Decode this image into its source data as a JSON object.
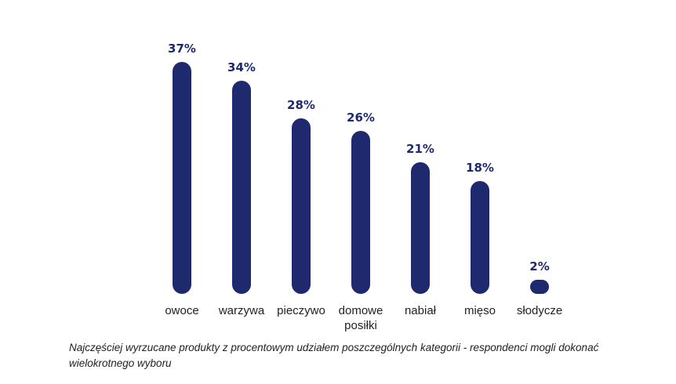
{
  "chart_data": {
    "type": "bar",
    "categories": [
      [
        "owoce"
      ],
      [
        "warzywa"
      ],
      [
        "pieczywo"
      ],
      [
        "domowe",
        "posiłki"
      ],
      [
        "nabiał"
      ],
      [
        "mięso"
      ],
      [
        "słodycze"
      ]
    ],
    "values": [
      37,
      34,
      28,
      26,
      21,
      18,
      2
    ],
    "value_labels": [
      "37%",
      "34%",
      "28%",
      "26%",
      "21%",
      "18%",
      "2%"
    ],
    "ylim": [
      0,
      40
    ],
    "grid": false,
    "bar_color": "#1f2a6e"
  },
  "caption": "Najczęściej wyrzucane produkty z procentowym udziałem poszczególnych kategorii - respondenci mogli dokonać wielokrotnego wyboru"
}
